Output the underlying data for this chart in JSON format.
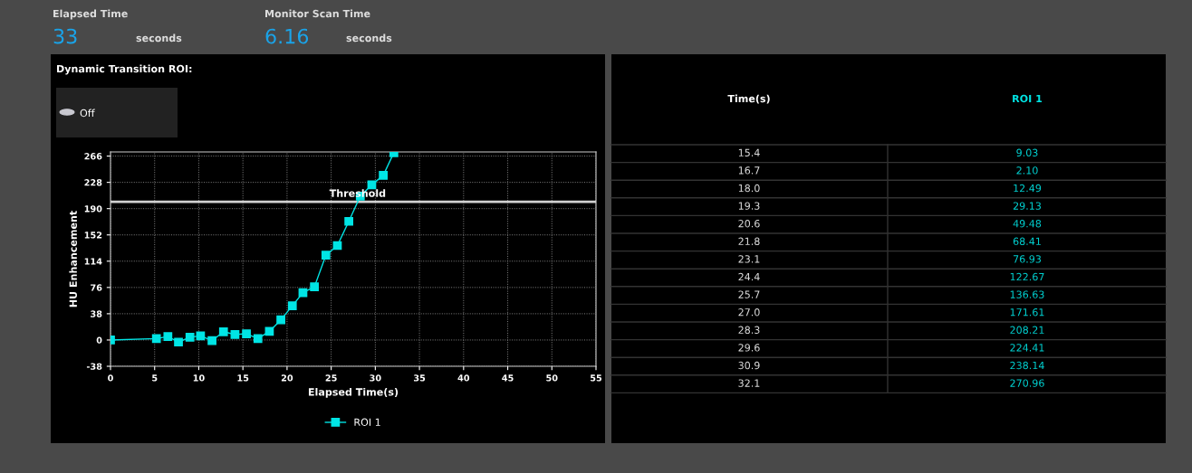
{
  "chart_data": [
    {
      "type": "line",
      "xlabel": "Elapsed Time(s)",
      "ylabel": "HU Enhancement",
      "annotations": [
        "Elapsed Time",
        "33",
        "seconds",
        "Monitor Scan Time",
        "6.16",
        "seconds",
        "Dynamic Transition ROI:",
        "Off"
      ],
      "series": [
        {
          "name": "ROI 1",
          "color": "#00e5e5",
          "x": [
            0,
            5.2,
            6.5,
            7.7,
            9.0,
            10.2,
            11.5,
            12.8,
            14.1,
            15.4,
            16.7,
            18.0,
            19.3,
            20.6,
            21.8,
            23.1,
            24.4,
            25.7,
            27.0,
            28.3,
            29.6,
            30.9,
            32.1
          ],
          "values": [
            0,
            2,
            5,
            -3,
            4,
            6,
            -1,
            12,
            8,
            9.03,
            2.1,
            12.49,
            29.13,
            49.48,
            68.41,
            76.93,
            122.67,
            136.63,
            171.61,
            208.21,
            224.41,
            238.14,
            270.96
          ]
        }
      ],
      "xlim": [
        0,
        55
      ],
      "xticks": [
        0,
        5,
        10,
        15,
        20,
        25,
        30,
        35,
        40,
        45,
        50,
        55
      ],
      "ylim": [
        -38,
        272
      ],
      "yticks": [
        -38,
        0,
        38,
        76,
        114,
        152,
        190,
        228,
        266
      ],
      "ref_lines": [
        {
          "axis": "y",
          "value": 200,
          "label": "Threshold",
          "color": "#d0d0d0"
        }
      ],
      "grid": true,
      "legend": "bottom",
      "marker": "square",
      "line_style": "solid"
    },
    {
      "type": "other",
      "annotations": [
        "Time(s)",
        "ROI 1",
        "15.4",
        "9.03",
        "16.7",
        "2.10",
        "18.0",
        "12.49",
        "19.3",
        "29.13",
        "20.6",
        "49.48",
        "21.8",
        "68.41",
        "23.1",
        "76.93",
        "24.4",
        "122.67",
        "25.7",
        "136.63",
        "27.0",
        "171.61",
        "28.3",
        "208.21",
        "29.6",
        "224.41",
        "30.9",
        "238.14",
        "32.1",
        "270.96"
      ]
    }
  ]
}
